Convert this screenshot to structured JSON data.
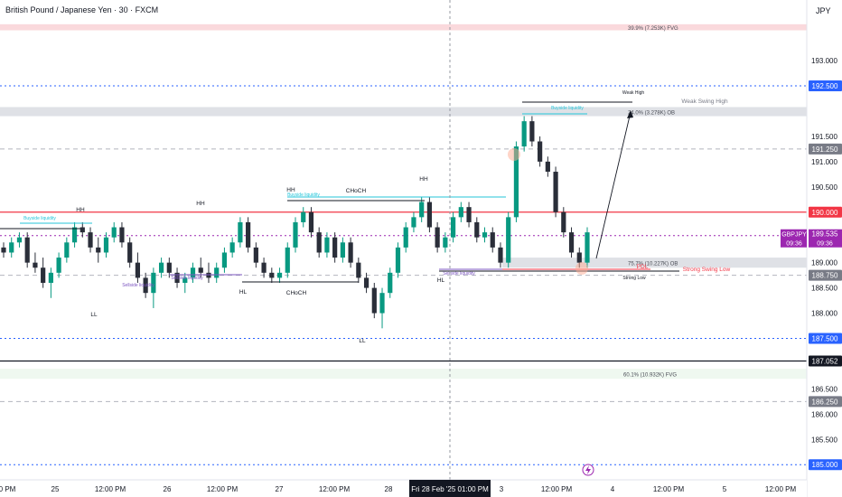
{
  "header": {
    "title": "British Pound / Japanese Yen · 30 · FXCM",
    "currency": "JPY"
  },
  "chart_data": {
    "type": "candlestick",
    "symbol": "GBPJPY",
    "interval": "30",
    "broker": "FXCM",
    "ylim": [
      184.7,
      194.2
    ],
    "price_axis": {
      "ticks": [
        "193.000",
        "191.500",
        "191.000",
        "190.500",
        "189.000",
        "188.500",
        "188.000",
        "186.500",
        "186.000",
        "185.500"
      ],
      "tick_values": [
        193.0,
        191.5,
        191.0,
        190.5,
        189.0,
        188.5,
        188.0,
        186.5,
        186.0,
        185.5
      ]
    },
    "time_axis": {
      "labels": [
        "0 PM",
        "25",
        "12:00 PM",
        "26",
        "12:00 PM",
        "27",
        "12:00 PM",
        "28",
        "3",
        "12:00 PM",
        "4",
        "12:00 PM",
        "5",
        "12:00 PM"
      ],
      "bold": [
        false,
        false,
        false,
        false,
        false,
        false,
        false,
        false,
        false,
        false,
        false,
        false,
        false,
        false
      ],
      "crosshair_label": "Fri 28 Feb '25   01:00 PM"
    },
    "price_labels": [
      {
        "text": "192.500",
        "value": 192.5,
        "color": "#2962ff"
      },
      {
        "text": "191.250",
        "value": 191.25,
        "color": "#787b86"
      },
      {
        "text": "190.000",
        "value": 190.0,
        "color": "#f23645"
      },
      {
        "text": "188.750",
        "value": 188.75,
        "color": "#787b86"
      },
      {
        "text": "187.500",
        "value": 187.5,
        "color": "#2962ff"
      },
      {
        "text": "187.052",
        "value": 187.052,
        "color": "#131722"
      },
      {
        "text": "186.250",
        "value": 186.25,
        "color": "#787b86"
      },
      {
        "text": "185.000",
        "value": 185.0,
        "color": "#2962ff"
      }
    ],
    "current_price": {
      "symbol": "GBPJPY",
      "price": "189.535",
      "countdown": "09:36",
      "value": 189.535,
      "color": "#9c27b0"
    },
    "levels": [
      {
        "value": 192.5,
        "style": "dotted",
        "color": "#2962ff"
      },
      {
        "value": 191.25,
        "style": "dashed",
        "color": "#b2b5be"
      },
      {
        "value": 190.0,
        "style": "solid",
        "color": "#f23645"
      },
      {
        "value": 189.535,
        "style": "dotted",
        "color": "#9c27b0"
      },
      {
        "value": 188.75,
        "style": "dashed",
        "color": "#b2b5be"
      },
      {
        "value": 187.5,
        "style": "dotted",
        "color": "#2962ff"
      },
      {
        "value": 187.052,
        "style": "solid",
        "color": "#131722"
      },
      {
        "value": 186.25,
        "style": "dashed",
        "color": "#b2b5be"
      },
      {
        "value": 185.0,
        "style": "dotted",
        "color": "#2962ff"
      }
    ],
    "zones": [
      {
        "label": "39.9% (7.253K) FVG",
        "low": 193.6,
        "high": 193.72,
        "fill": "#f8c9cd"
      },
      {
        "label": "24.0% (3.278K) OB",
        "low": 191.9,
        "high": 192.08,
        "fill": "#d1d4dc"
      },
      {
        "label": "75.7% (10.227K) OB",
        "low": 188.9,
        "high": 189.1,
        "fill": "#d1d4dc"
      },
      {
        "label": "60.1% (10.932K) FVG",
        "low": 186.7,
        "high": 186.9,
        "fill": "#e8f5e9"
      }
    ],
    "annotations": [
      "HH",
      "HH",
      "HH",
      "HH",
      "CHoCH",
      "CHoCH",
      "LL",
      "LL",
      "HL",
      "HL",
      "Buyside liquidity",
      "Buyside liquidity",
      "Buyside liquidity",
      "Sellside liquidity",
      "Sellside liquidity",
      "Sellside liquidity",
      "Weak High",
      "Weak Swing High",
      "Strong Swing Low",
      "PDL",
      "Strong Low"
    ],
    "annotation_lines": [
      {
        "text": "Weak High",
        "value": 192.1
      },
      {
        "text": "Weak Swing High",
        "value": 192.0
      },
      {
        "text": "Strong Swing Low",
        "value": 188.8
      },
      {
        "text": "PDL",
        "value": 188.82
      },
      {
        "text": "Strong Low",
        "value": 188.7
      }
    ],
    "ohlc": [
      [
        189.3,
        189.4,
        189.1,
        189.2
      ],
      [
        189.2,
        189.5,
        189.1,
        189.4
      ],
      [
        189.4,
        189.6,
        189.3,
        189.5
      ],
      [
        189.5,
        189.6,
        188.9,
        189.0
      ],
      [
        189.0,
        189.2,
        188.8,
        188.9
      ],
      [
        188.9,
        189.1,
        188.5,
        188.6
      ],
      [
        188.6,
        188.9,
        188.3,
        188.8
      ],
      [
        188.8,
        189.2,
        188.7,
        189.1
      ],
      [
        189.1,
        189.5,
        189.0,
        189.4
      ],
      [
        189.4,
        189.8,
        189.3,
        189.7
      ],
      [
        189.7,
        189.8,
        189.5,
        189.6
      ],
      [
        189.6,
        189.7,
        189.2,
        189.3
      ],
      [
        189.3,
        189.5,
        189.0,
        189.2
      ],
      [
        189.2,
        189.6,
        189.1,
        189.5
      ],
      [
        189.5,
        189.8,
        189.4,
        189.7
      ],
      [
        189.7,
        189.8,
        189.3,
        189.4
      ],
      [
        189.4,
        189.5,
        188.9,
        189.0
      ],
      [
        189.0,
        189.2,
        188.6,
        188.7
      ],
      [
        188.7,
        188.8,
        188.3,
        188.4
      ],
      [
        188.4,
        188.9,
        188.1,
        188.8
      ],
      [
        188.8,
        189.1,
        188.7,
        189.0
      ],
      [
        189.0,
        189.1,
        188.7,
        188.8
      ],
      [
        188.8,
        188.9,
        188.5,
        188.6
      ],
      [
        188.6,
        188.8,
        188.4,
        188.7
      ],
      [
        188.7,
        189.0,
        188.6,
        188.9
      ],
      [
        188.9,
        189.1,
        188.7,
        188.8
      ],
      [
        188.8,
        189.0,
        188.6,
        188.7
      ],
      [
        188.7,
        189.0,
        188.6,
        188.9
      ],
      [
        188.9,
        189.3,
        188.8,
        189.2
      ],
      [
        189.2,
        189.5,
        189.1,
        189.4
      ],
      [
        189.4,
        189.9,
        189.3,
        189.8
      ],
      [
        189.8,
        189.9,
        189.2,
        189.3
      ],
      [
        189.3,
        189.4,
        188.9,
        189.0
      ],
      [
        189.0,
        189.1,
        188.7,
        188.8
      ],
      [
        188.8,
        188.9,
        188.6,
        188.7
      ],
      [
        188.7,
        188.9,
        188.6,
        188.8
      ],
      [
        188.8,
        189.4,
        188.7,
        189.3
      ],
      [
        189.3,
        189.9,
        189.2,
        189.8
      ],
      [
        189.8,
        190.1,
        189.7,
        190.0
      ],
      [
        190.0,
        190.1,
        189.5,
        189.6
      ],
      [
        189.6,
        189.7,
        189.1,
        189.2
      ],
      [
        189.2,
        189.6,
        189.1,
        189.5
      ],
      [
        189.5,
        189.6,
        189.0,
        189.1
      ],
      [
        189.1,
        189.5,
        189.0,
        189.4
      ],
      [
        189.4,
        189.5,
        188.9,
        189.0
      ],
      [
        189.0,
        189.1,
        188.6,
        188.7
      ],
      [
        188.7,
        188.8,
        188.4,
        188.5
      ],
      [
        188.5,
        188.6,
        187.9,
        188.0
      ],
      [
        188.0,
        188.5,
        187.7,
        188.4
      ],
      [
        188.4,
        188.9,
        188.3,
        188.8
      ],
      [
        188.8,
        189.4,
        188.7,
        189.3
      ],
      [
        189.3,
        189.8,
        189.2,
        189.7
      ],
      [
        189.7,
        190.0,
        189.6,
        189.9
      ],
      [
        189.9,
        190.3,
        189.8,
        190.2
      ],
      [
        190.2,
        190.3,
        189.6,
        189.7
      ],
      [
        189.7,
        189.8,
        189.2,
        189.3
      ],
      [
        189.3,
        189.6,
        189.2,
        189.5
      ],
      [
        189.5,
        190.0,
        189.4,
        189.9
      ],
      [
        189.9,
        190.2,
        189.8,
        190.1
      ],
      [
        190.1,
        190.2,
        189.7,
        189.8
      ],
      [
        189.8,
        189.9,
        189.4,
        189.5
      ],
      [
        189.5,
        189.7,
        189.4,
        189.6
      ],
      [
        189.6,
        189.7,
        189.2,
        189.3
      ],
      [
        189.3,
        189.4,
        188.9,
        189.0
      ],
      [
        189.0,
        190.0,
        188.9,
        189.9
      ],
      [
        189.9,
        191.4,
        189.8,
        191.3
      ],
      [
        191.3,
        191.9,
        191.2,
        191.8
      ],
      [
        191.8,
        191.9,
        191.3,
        191.4
      ],
      [
        191.4,
        191.5,
        190.9,
        191.0
      ],
      [
        191.0,
        191.1,
        190.7,
        190.8
      ],
      [
        190.8,
        190.9,
        189.9,
        190.0
      ],
      [
        190.0,
        190.1,
        189.5,
        189.6
      ],
      [
        189.6,
        189.7,
        189.1,
        189.2
      ],
      [
        189.2,
        189.3,
        188.9,
        189.0
      ],
      [
        189.0,
        189.7,
        188.9,
        189.6
      ]
    ]
  }
}
